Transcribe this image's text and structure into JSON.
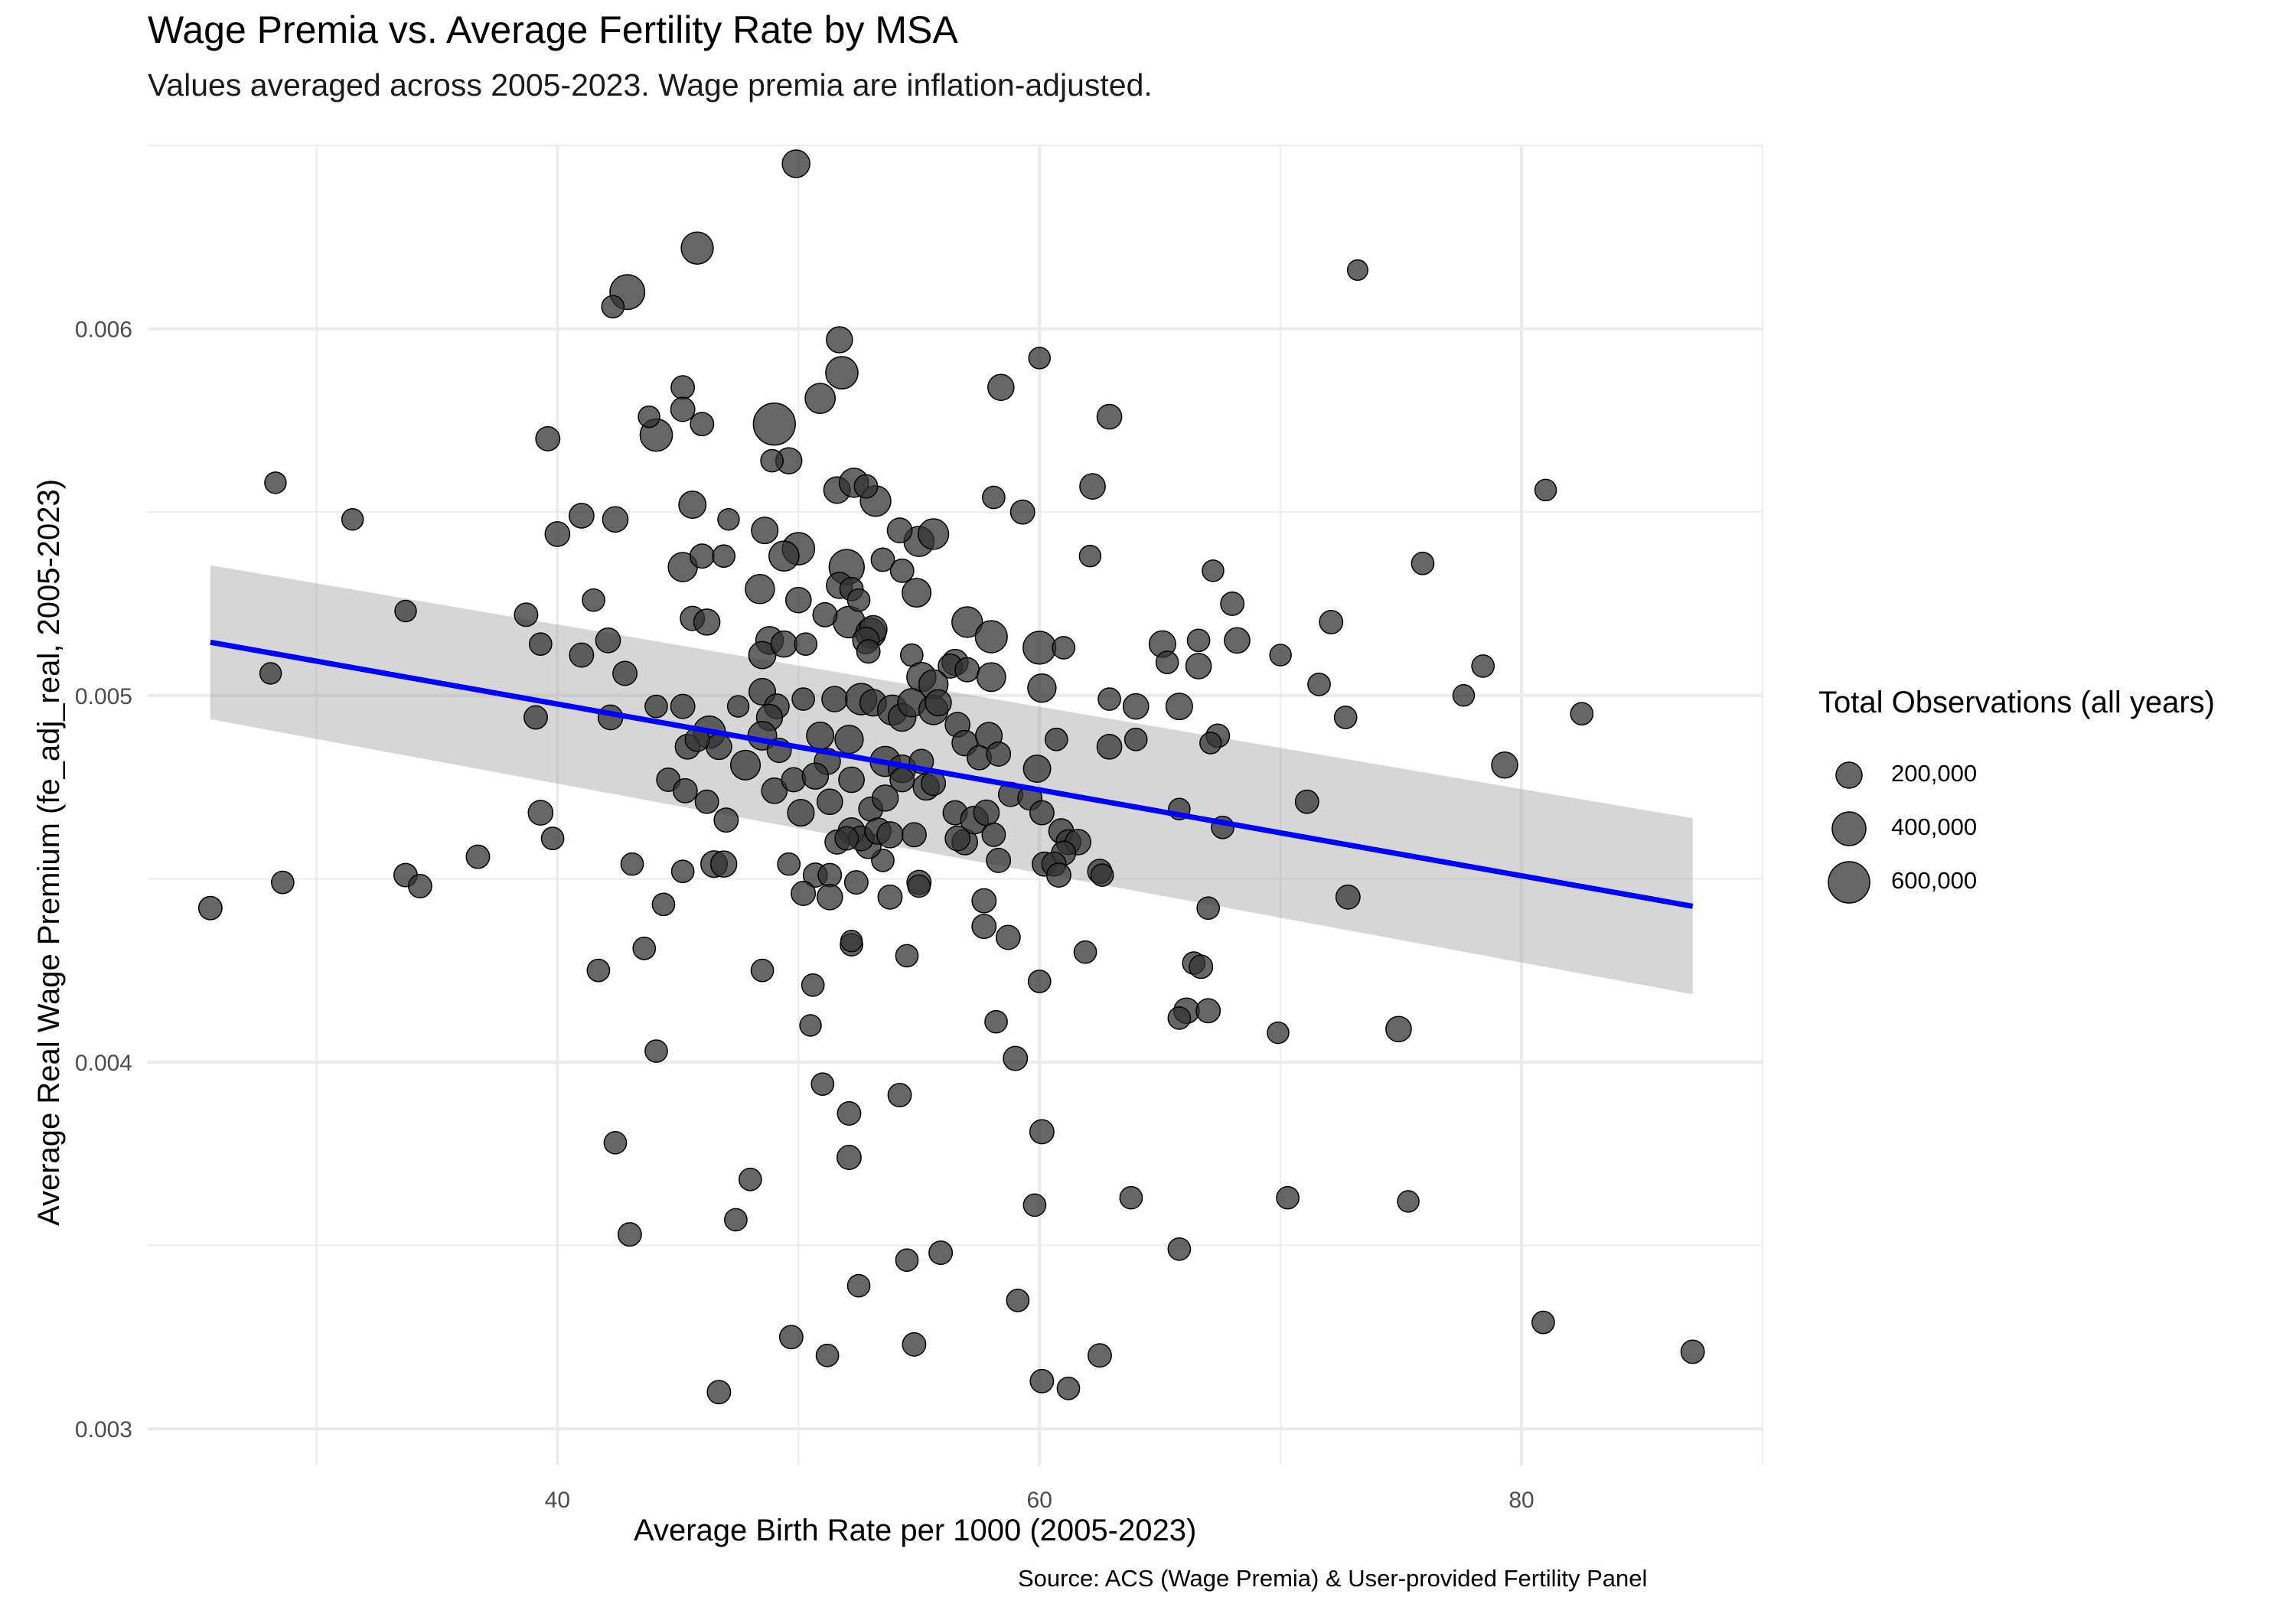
{
  "chart_data": {
    "type": "scatter",
    "title": "Wage Premia vs. Average Fertility Rate by MSA",
    "subtitle": "Values averaged across 2005-2023. Wage premia are inflation-adjusted.",
    "xlabel": "Average Birth Rate per 1000 (2005-2023)",
    "ylabel": "Average Real Wage Premium (fe_adj_real, 2005-2023)",
    "caption": "Source: ACS (Wage Premia) & User-provided Fertility Panel",
    "xlim": [
      23,
      90
    ],
    "ylim": [
      0.0029,
      0.0065
    ],
    "x_ticks": [
      "40",
      "60",
      "80"
    ],
    "y_ticks": [
      "0.003",
      "0.004",
      "0.005",
      "0.006"
    ],
    "grid": true,
    "legend": {
      "title": "Total Observations (all years)",
      "position": "right",
      "items": [
        {
          "label": "200,000",
          "value": 200000
        },
        {
          "label": "400,000",
          "value": 400000
        },
        {
          "label": "600,000",
          "value": 600000
        }
      ]
    },
    "trend_line": {
      "color": "#0000ff",
      "x": [
        25.6,
        87.1
      ],
      "y": [
        0.005145,
        0.004425
      ],
      "ci_lower": [
        0.004935,
        0.004185
      ],
      "ci_upper": [
        0.005355,
        0.004665
      ]
    },
    "point_color": "#333333",
    "points": [
      [
        49.9,
        0.00645,
        120000
      ],
      [
        45.8,
        0.00622,
        220000
      ],
      [
        42.9,
        0.0061,
        300000
      ],
      [
        73.2,
        0.00616,
        20000
      ],
      [
        42.3,
        0.00606,
        40000
      ],
      [
        51.7,
        0.00597,
        90000
      ],
      [
        51.8,
        0.00588,
        230000
      ],
      [
        50.9,
        0.00581,
        170000
      ],
      [
        60.0,
        0.00592,
        30000
      ],
      [
        58.4,
        0.00584,
        90000
      ],
      [
        49.0,
        0.00574,
        560000
      ],
      [
        44.1,
        0.00571,
        230000
      ],
      [
        39.6,
        0.0057,
        60000
      ],
      [
        45.2,
        0.00584,
        50000
      ],
      [
        45.2,
        0.00578,
        60000
      ],
      [
        46.0,
        0.00574,
        50000
      ],
      [
        43.8,
        0.00576,
        30000
      ],
      [
        62.9,
        0.00576,
        70000
      ],
      [
        49.6,
        0.00564,
        90000
      ],
      [
        48.9,
        0.00564,
        40000
      ],
      [
        51.6,
        0.00556,
        100000
      ],
      [
        52.3,
        0.00558,
        150000
      ],
      [
        53.2,
        0.00553,
        180000
      ],
      [
        52.8,
        0.00557,
        50000
      ],
      [
        62.2,
        0.00557,
        80000
      ],
      [
        58.1,
        0.00554,
        40000
      ],
      [
        59.3,
        0.0055,
        60000
      ],
      [
        45.6,
        0.00552,
        110000
      ],
      [
        41.0,
        0.00549,
        70000
      ],
      [
        42.4,
        0.00548,
        80000
      ],
      [
        40.0,
        0.00544,
        70000
      ],
      [
        47.1,
        0.00548,
        30000
      ],
      [
        48.6,
        0.00545,
        100000
      ],
      [
        50.0,
        0.0054,
        230000
      ],
      [
        49.4,
        0.00538,
        170000
      ],
      [
        55.0,
        0.00542,
        170000
      ],
      [
        55.6,
        0.00544,
        180000
      ],
      [
        54.2,
        0.00545,
        70000
      ],
      [
        52.0,
        0.00535,
        310000
      ],
      [
        51.7,
        0.0053,
        90000
      ],
      [
        52.2,
        0.00529,
        50000
      ],
      [
        53.5,
        0.00537,
        50000
      ],
      [
        54.3,
        0.00534,
        50000
      ],
      [
        54.9,
        0.00528,
        140000
      ],
      [
        62.1,
        0.00538,
        30000
      ],
      [
        67.2,
        0.00534,
        30000
      ],
      [
        75.9,
        0.00536,
        40000
      ],
      [
        81.0,
        0.00556,
        30000
      ],
      [
        28.3,
        0.00558,
        30000
      ],
      [
        31.5,
        0.00548,
        30000
      ],
      [
        45.2,
        0.00535,
        150000
      ],
      [
        46.0,
        0.00538,
        60000
      ],
      [
        46.9,
        0.00538,
        40000
      ],
      [
        48.4,
        0.00529,
        150000
      ],
      [
        50.0,
        0.00526,
        80000
      ],
      [
        52.1,
        0.0052,
        210000
      ],
      [
        53.0,
        0.00517,
        170000
      ],
      [
        53.1,
        0.00518,
        120000
      ],
      [
        52.8,
        0.00515,
        100000
      ],
      [
        52.9,
        0.00512,
        50000
      ],
      [
        52.5,
        0.00526,
        40000
      ],
      [
        57.0,
        0.0052,
        180000
      ],
      [
        58.0,
        0.00516,
        220000
      ],
      [
        60.0,
        0.00513,
        240000
      ],
      [
        61.0,
        0.00513,
        40000
      ],
      [
        65.1,
        0.00514,
        100000
      ],
      [
        66.6,
        0.00515,
        40000
      ],
      [
        68.2,
        0.00515,
        80000
      ],
      [
        68.0,
        0.00525,
        50000
      ],
      [
        72.1,
        0.0052,
        50000
      ],
      [
        38.7,
        0.00522,
        50000
      ],
      [
        33.7,
        0.00523,
        30000
      ],
      [
        41.5,
        0.00526,
        40000
      ],
      [
        39.3,
        0.00514,
        40000
      ],
      [
        42.1,
        0.00515,
        70000
      ],
      [
        45.6,
        0.00521,
        60000
      ],
      [
        46.2,
        0.0052,
        90000
      ],
      [
        48.8,
        0.00515,
        120000
      ],
      [
        48.5,
        0.00511,
        110000
      ],
      [
        49.4,
        0.00514,
        90000
      ],
      [
        50.3,
        0.00514,
        40000
      ],
      [
        51.1,
        0.00522,
        60000
      ],
      [
        54.7,
        0.00511,
        40000
      ],
      [
        56.5,
        0.00509,
        90000
      ],
      [
        56.3,
        0.00508,
        60000
      ],
      [
        57.0,
        0.00507,
        60000
      ],
      [
        58.0,
        0.00505,
        140000
      ],
      [
        55.1,
        0.00505,
        150000
      ],
      [
        55.6,
        0.00503,
        150000
      ],
      [
        60.1,
        0.00502,
        130000
      ],
      [
        65.3,
        0.00509,
        40000
      ],
      [
        66.6,
        0.00508,
        80000
      ],
      [
        70.0,
        0.00511,
        30000
      ],
      [
        71.6,
        0.00503,
        40000
      ],
      [
        77.6,
        0.005,
        30000
      ],
      [
        78.4,
        0.00508,
        40000
      ],
      [
        82.5,
        0.00495,
        40000
      ],
      [
        79.3,
        0.00481,
        90000
      ],
      [
        72.7,
        0.00494,
        40000
      ],
      [
        62.9,
        0.00499,
        40000
      ],
      [
        64.0,
        0.00497,
        80000
      ],
      [
        65.8,
        0.00497,
        100000
      ],
      [
        67.4,
        0.00489,
        50000
      ],
      [
        67.1,
        0.00487,
        30000
      ],
      [
        64.0,
        0.00488,
        40000
      ],
      [
        62.9,
        0.00486,
        70000
      ],
      [
        60.7,
        0.00488,
        40000
      ],
      [
        42.8,
        0.00506,
        60000
      ],
      [
        41.0,
        0.00511,
        60000
      ],
      [
        28.1,
        0.00506,
        30000
      ],
      [
        39.1,
        0.00494,
        50000
      ],
      [
        42.2,
        0.00494,
        70000
      ],
      [
        44.1,
        0.00497,
        40000
      ],
      [
        45.2,
        0.00497,
        60000
      ],
      [
        47.5,
        0.00497,
        30000
      ],
      [
        48.5,
        0.00501,
        100000
      ],
      [
        49.1,
        0.00497,
        70000
      ],
      [
        48.8,
        0.00494,
        90000
      ],
      [
        50.2,
        0.00499,
        40000
      ],
      [
        51.5,
        0.00499,
        80000
      ],
      [
        52.6,
        0.00499,
        200000
      ],
      [
        53.1,
        0.00498,
        100000
      ],
      [
        53.9,
        0.00496,
        170000
      ],
      [
        54.3,
        0.00494,
        120000
      ],
      [
        54.7,
        0.00498,
        130000
      ],
      [
        55.6,
        0.00496,
        150000
      ],
      [
        55.8,
        0.00498,
        90000
      ],
      [
        50.9,
        0.00489,
        110000
      ],
      [
        52.1,
        0.00488,
        130000
      ],
      [
        46.3,
        0.0049,
        220000
      ],
      [
        47.8,
        0.00481,
        160000
      ],
      [
        48.5,
        0.00489,
        140000
      ],
      [
        49.2,
        0.00485,
        60000
      ],
      [
        51.2,
        0.00482,
        90000
      ],
      [
        53.6,
        0.00482,
        170000
      ],
      [
        54.3,
        0.0048,
        120000
      ],
      [
        55.1,
        0.00482,
        60000
      ],
      [
        56.6,
        0.00492,
        70000
      ],
      [
        56.9,
        0.00487,
        80000
      ],
      [
        57.9,
        0.00489,
        100000
      ],
      [
        57.5,
        0.00483,
        60000
      ],
      [
        58.3,
        0.00484,
        60000
      ],
      [
        59.9,
        0.0048,
        110000
      ],
      [
        45.4,
        0.00486,
        70000
      ],
      [
        46.7,
        0.00486,
        80000
      ],
      [
        45.8,
        0.00488,
        60000
      ],
      [
        44.6,
        0.00477,
        50000
      ],
      [
        45.3,
        0.00474,
        60000
      ],
      [
        46.2,
        0.00471,
        50000
      ],
      [
        47.0,
        0.00466,
        60000
      ],
      [
        49.0,
        0.00474,
        80000
      ],
      [
        49.8,
        0.00477,
        60000
      ],
      [
        50.1,
        0.00468,
        100000
      ],
      [
        50.7,
        0.00478,
        90000
      ],
      [
        51.3,
        0.00471,
        80000
      ],
      [
        52.2,
        0.00477,
        80000
      ],
      [
        53.0,
        0.00469,
        60000
      ],
      [
        53.6,
        0.00472,
        90000
      ],
      [
        54.3,
        0.00477,
        60000
      ],
      [
        55.3,
        0.00475,
        90000
      ],
      [
        55.6,
        0.00476,
        60000
      ],
      [
        56.5,
        0.00468,
        60000
      ],
      [
        56.9,
        0.0046,
        80000
      ],
      [
        57.3,
        0.00466,
        120000
      ],
      [
        57.8,
        0.00468,
        80000
      ],
      [
        58.1,
        0.00462,
        50000
      ],
      [
        58.8,
        0.00473,
        60000
      ],
      [
        59.6,
        0.00472,
        60000
      ],
      [
        60.1,
        0.00468,
        60000
      ],
      [
        60.9,
        0.00463,
        70000
      ],
      [
        61.2,
        0.0046,
        70000
      ],
      [
        61.6,
        0.0046,
        80000
      ],
      [
        61.0,
        0.00457,
        60000
      ],
      [
        60.2,
        0.00454,
        60000
      ],
      [
        60.6,
        0.00454,
        60000
      ],
      [
        60.8,
        0.00451,
        60000
      ],
      [
        62.5,
        0.00452,
        60000
      ],
      [
        62.6,
        0.00451,
        40000
      ],
      [
        65.8,
        0.00469,
        30000
      ],
      [
        67.6,
        0.00464,
        40000
      ],
      [
        71.1,
        0.00471,
        50000
      ],
      [
        72.8,
        0.00445,
        60000
      ],
      [
        67.0,
        0.00442,
        40000
      ],
      [
        66.4,
        0.00427,
        40000
      ],
      [
        66.7,
        0.00426,
        50000
      ],
      [
        66.1,
        0.00414,
        80000
      ],
      [
        67.0,
        0.00414,
        60000
      ],
      [
        65.8,
        0.00412,
        40000
      ],
      [
        69.9,
        0.00408,
        30000
      ],
      [
        74.9,
        0.00409,
        80000
      ],
      [
        61.9,
        0.0043,
        40000
      ],
      [
        58.7,
        0.00434,
        60000
      ],
      [
        57.7,
        0.00437,
        60000
      ],
      [
        57.7,
        0.00444,
        60000
      ],
      [
        58.3,
        0.00455,
        60000
      ],
      [
        56.6,
        0.00461,
        70000
      ],
      [
        55.0,
        0.00449,
        60000
      ],
      [
        55.0,
        0.00448,
        40000
      ],
      [
        53.5,
        0.00455,
        40000
      ],
      [
        52.9,
        0.00459,
        80000
      ],
      [
        52.2,
        0.00463,
        100000
      ],
      [
        52.6,
        0.00461,
        70000
      ],
      [
        53.3,
        0.00463,
        90000
      ],
      [
        53.8,
        0.00462,
        90000
      ],
      [
        54.8,
        0.00462,
        60000
      ],
      [
        51.6,
        0.0046,
        60000
      ],
      [
        52.0,
        0.00461,
        50000
      ],
      [
        50.7,
        0.00451,
        60000
      ],
      [
        50.2,
        0.00446,
        60000
      ],
      [
        49.6,
        0.00454,
        40000
      ],
      [
        51.3,
        0.00451,
        50000
      ],
      [
        51.3,
        0.00445,
        80000
      ],
      [
        52.4,
        0.00449,
        50000
      ],
      [
        53.8,
        0.00445,
        60000
      ],
      [
        46.5,
        0.00454,
        100000
      ],
      [
        46.9,
        0.00454,
        90000
      ],
      [
        45.2,
        0.00452,
        40000
      ],
      [
        43.1,
        0.00454,
        40000
      ],
      [
        44.4,
        0.00443,
        40000
      ],
      [
        43.6,
        0.00431,
        40000
      ],
      [
        41.7,
        0.00425,
        40000
      ],
      [
        48.5,
        0.00425,
        40000
      ],
      [
        50.6,
        0.00421,
        40000
      ],
      [
        52.2,
        0.00432,
        40000
      ],
      [
        52.2,
        0.00433,
        30000
      ],
      [
        54.5,
        0.00429,
        40000
      ],
      [
        60.0,
        0.00422,
        40000
      ],
      [
        58.2,
        0.00411,
        40000
      ],
      [
        50.5,
        0.0041,
        30000
      ],
      [
        44.1,
        0.00403,
        40000
      ],
      [
        59.0,
        0.00401,
        60000
      ],
      [
        51.0,
        0.00394,
        40000
      ],
      [
        52.1,
        0.00386,
        50000
      ],
      [
        54.2,
        0.00391,
        50000
      ],
      [
        60.1,
        0.00381,
        60000
      ],
      [
        42.4,
        0.00378,
        40000
      ],
      [
        52.1,
        0.00374,
        60000
      ],
      [
        48.0,
        0.00368,
        40000
      ],
      [
        47.4,
        0.00357,
        40000
      ],
      [
        43.0,
        0.00353,
        50000
      ],
      [
        55.9,
        0.00348,
        50000
      ],
      [
        54.5,
        0.00346,
        40000
      ],
      [
        52.5,
        0.00339,
        40000
      ],
      [
        59.1,
        0.00335,
        40000
      ],
      [
        59.8,
        0.00361,
        40000
      ],
      [
        63.8,
        0.00363,
        40000
      ],
      [
        65.8,
        0.00349,
        40000
      ],
      [
        70.3,
        0.00363,
        40000
      ],
      [
        75.3,
        0.00362,
        30000
      ],
      [
        49.7,
        0.00325,
        50000
      ],
      [
        51.2,
        0.0032,
        40000
      ],
      [
        54.8,
        0.00323,
        50000
      ],
      [
        60.1,
        0.00313,
        50000
      ],
      [
        61.2,
        0.00311,
        40000
      ],
      [
        62.5,
        0.0032,
        50000
      ],
      [
        46.7,
        0.0031,
        50000
      ],
      [
        80.9,
        0.00329,
        40000
      ],
      [
        87.1,
        0.00321,
        50000
      ],
      [
        25.6,
        0.00442,
        50000
      ],
      [
        28.6,
        0.00449,
        40000
      ],
      [
        33.7,
        0.00451,
        50000
      ],
      [
        34.3,
        0.00448,
        50000
      ],
      [
        36.7,
        0.00456,
        50000
      ],
      [
        39.3,
        0.00468,
        70000
      ],
      [
        39.8,
        0.00461,
        40000
      ]
    ]
  }
}
